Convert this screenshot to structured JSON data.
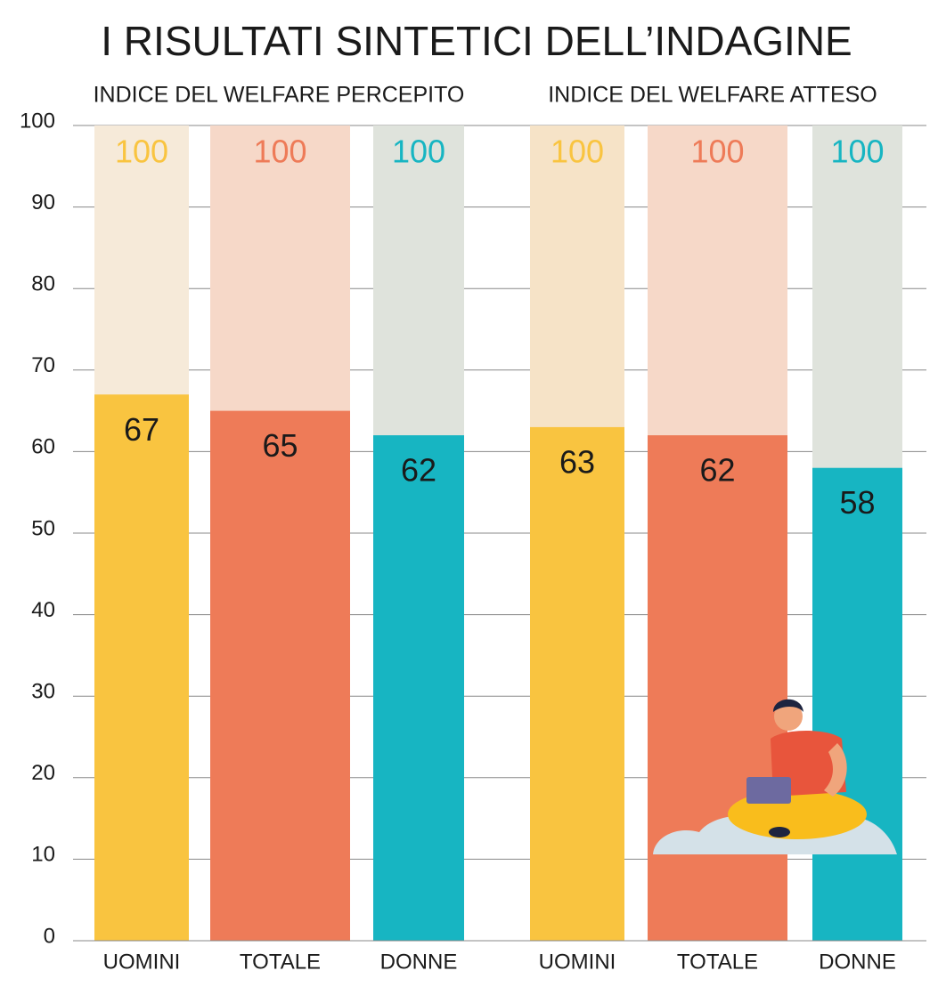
{
  "title": "I RISULTATI SINTETICI DELL’INDAGINE",
  "chart_data": [
    {
      "type": "bar",
      "subtitle": "INDICE DEL WELFARE PERCEPITO",
      "categories": [
        "UOMINI",
        "TOTALE",
        "DONNE"
      ],
      "values": [
        67,
        65,
        62
      ],
      "full_values": [
        100,
        100,
        100
      ],
      "colors": [
        "#f9c440",
        "#ee7b58",
        "#17b5c2"
      ],
      "full_colors": [
        "#f6ead9",
        "#f6d8c8",
        "#dfe3dc"
      ],
      "ylim": [
        0,
        100
      ],
      "yticks": [
        0,
        10,
        20,
        30,
        40,
        50,
        60,
        70,
        80,
        90,
        100
      ],
      "grid": true
    },
    {
      "type": "bar",
      "subtitle": "INDICE DEL WELFARE ATTESO",
      "categories": [
        "UOMINI",
        "TOTALE",
        "DONNE"
      ],
      "values": [
        63,
        62,
        58
      ],
      "full_values": [
        100,
        100,
        100
      ],
      "colors": [
        "#f9c440",
        "#ee7b58",
        "#17b5c2"
      ],
      "full_colors": [
        "#f6e3c7",
        "#f6d8c8",
        "#dfe3dc"
      ],
      "ylim": [
        0,
        100
      ],
      "yticks": [
        0,
        10,
        20,
        30,
        40,
        50,
        60,
        70,
        80,
        90,
        100
      ],
      "grid": true
    }
  ]
}
